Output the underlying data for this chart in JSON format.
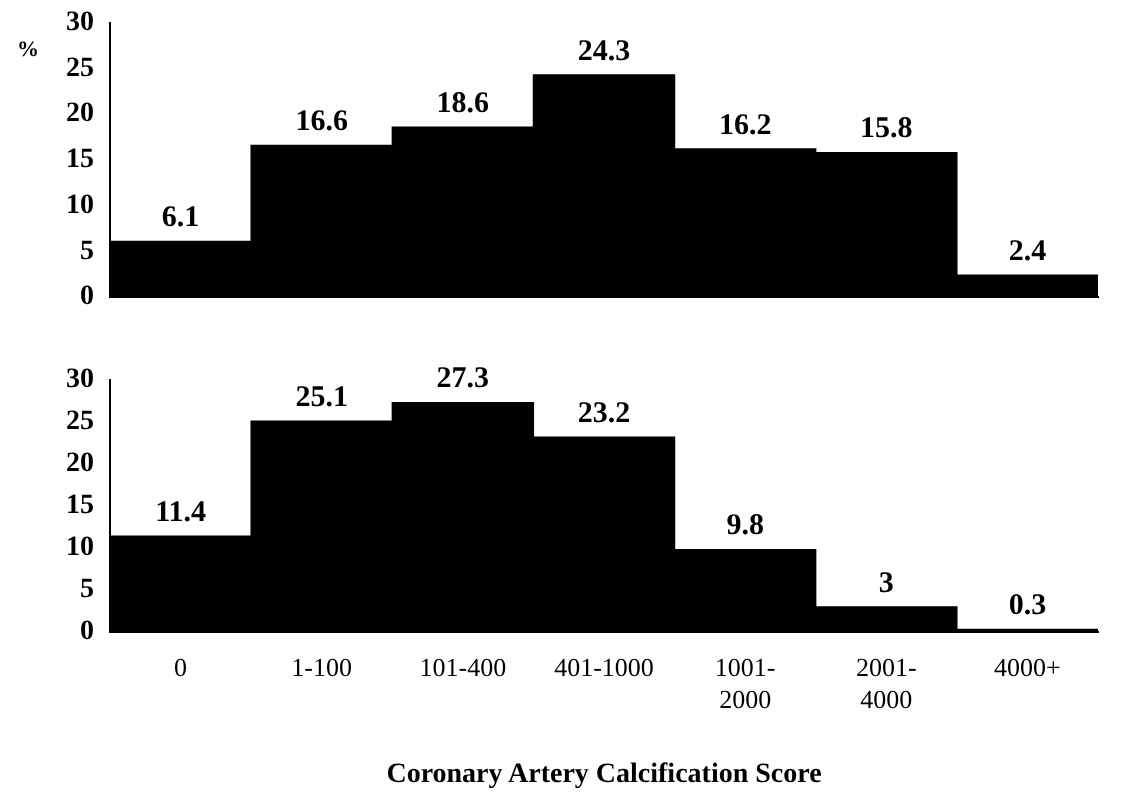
{
  "chart_data": [
    {
      "type": "bar",
      "ylabel": "%",
      "categories": [
        null,
        null,
        null,
        null,
        null,
        null,
        null
      ],
      "values": [
        6.1,
        16.6,
        18.6,
        24.3,
        16.2,
        15.8,
        2.4
      ],
      "color": "#000000",
      "ylim": [
        0,
        30
      ],
      "yticks": [
        0,
        5,
        10,
        15,
        20,
        25,
        30
      ],
      "data_labels": true,
      "tick_labels": "y"
    },
    {
      "type": "bar",
      "xlabel": "Coronary Artery Calcification Score",
      "categories": [
        "0",
        "1-100",
        "101-400",
        "401-1000",
        "1001-2000",
        "2001-4000",
        "4000+"
      ],
      "values": [
        11.4,
        25.1,
        27.3,
        23.2,
        9.8,
        3,
        0.3
      ],
      "color": "#000000",
      "ylim": [
        0,
        30
      ],
      "yticks": [
        0,
        5,
        10,
        15,
        20,
        25,
        30
      ],
      "data_labels": true
    }
  ]
}
